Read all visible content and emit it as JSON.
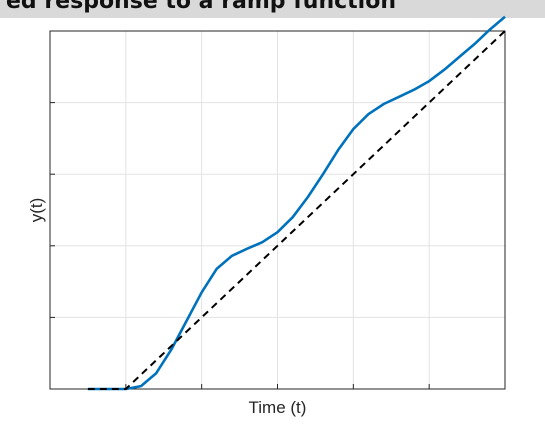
{
  "page": {
    "title": "ed response to a ramp function"
  },
  "chart_data": {
    "type": "line",
    "title": "ed response to a ramp function",
    "xlabel": "Time (t)",
    "ylabel": "y(t)",
    "xlim": [
      0,
      6
    ],
    "ylim": [
      0,
      5
    ],
    "xticks": [
      1,
      2,
      3,
      4,
      5,
      6
    ],
    "yticks": [
      1,
      2,
      3,
      4
    ],
    "show_tick_labels": false,
    "grid": true,
    "series": [
      {
        "color": "#0072BD",
        "style": "solid",
        "x": [
          0.5,
          0.7,
          0.9,
          1.0,
          1.2,
          1.4,
          1.6,
          1.8,
          2.0,
          2.2,
          2.4,
          2.6,
          2.8,
          3.0,
          3.2,
          3.4,
          3.6,
          3.8,
          4.0,
          4.2,
          4.4,
          4.6,
          4.8,
          5.0,
          5.2,
          5.4,
          5.6,
          5.8,
          6.0
        ],
        "y": [
          0.0,
          0.0,
          0.0,
          0.0,
          0.04,
          0.22,
          0.55,
          0.95,
          1.35,
          1.68,
          1.86,
          1.96,
          2.05,
          2.19,
          2.4,
          2.68,
          3.0,
          3.34,
          3.63,
          3.84,
          3.98,
          4.08,
          4.18,
          4.3,
          4.46,
          4.64,
          4.82,
          5.02,
          5.2
        ]
      },
      {
        "color": "#000000",
        "style": "dashed",
        "x": [
          0.5,
          1.0,
          6.0
        ],
        "y": [
          0.0,
          0.0,
          5.0
        ]
      }
    ]
  }
}
